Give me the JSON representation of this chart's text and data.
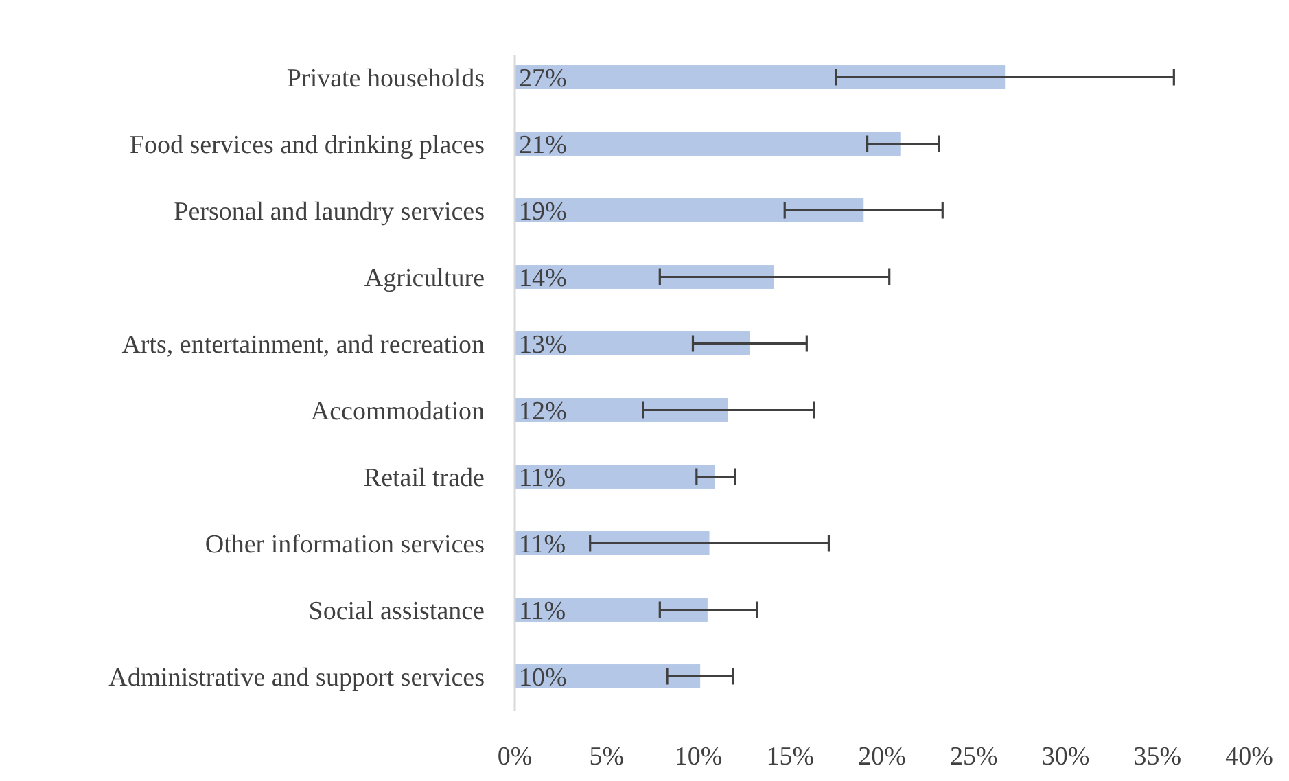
{
  "chart_data": {
    "type": "bar",
    "orientation": "horizontal",
    "categories": [
      "Private households",
      "Food services and drinking places",
      "Personal and laundry services",
      "Agriculture",
      "Arts, entertainment, and recreation",
      "Accommodation",
      "Retail trade",
      "Other information services",
      "Social assistance",
      "Administrative and support services"
    ],
    "values": [
      26.7,
      21.0,
      19.0,
      14.1,
      12.8,
      11.6,
      10.9,
      10.6,
      10.5,
      10.1
    ],
    "errors": [
      [
        17.5,
        35.9
      ],
      [
        19.2,
        23.1
      ],
      [
        14.7,
        23.3
      ],
      [
        7.9,
        20.4
      ],
      [
        9.7,
        15.9
      ],
      [
        7.0,
        16.3
      ],
      [
        9.9,
        12.0
      ],
      [
        4.1,
        17.1
      ],
      [
        7.9,
        13.2
      ],
      [
        8.3,
        11.9
      ]
    ],
    "value_labels": [
      "27%",
      "21%",
      "19%",
      "14%",
      "13%",
      "12%",
      "11%",
      "11%",
      "11%",
      "10%"
    ],
    "color": "#b4c7e7",
    "xlim": [
      0,
      40
    ],
    "xticks": [
      {
        "value": 0,
        "label": "0%"
      },
      {
        "value": 5,
        "label": "5%"
      },
      {
        "value": 10,
        "label": "10%"
      },
      {
        "value": 15,
        "label": "15%"
      },
      {
        "value": 20,
        "label": "20%"
      },
      {
        "value": 25,
        "label": "25%"
      },
      {
        "value": 30,
        "label": "30%"
      },
      {
        "value": 35,
        "label": "35%"
      },
      {
        "value": 40,
        "label": "40%"
      }
    ],
    "grid": false
  }
}
